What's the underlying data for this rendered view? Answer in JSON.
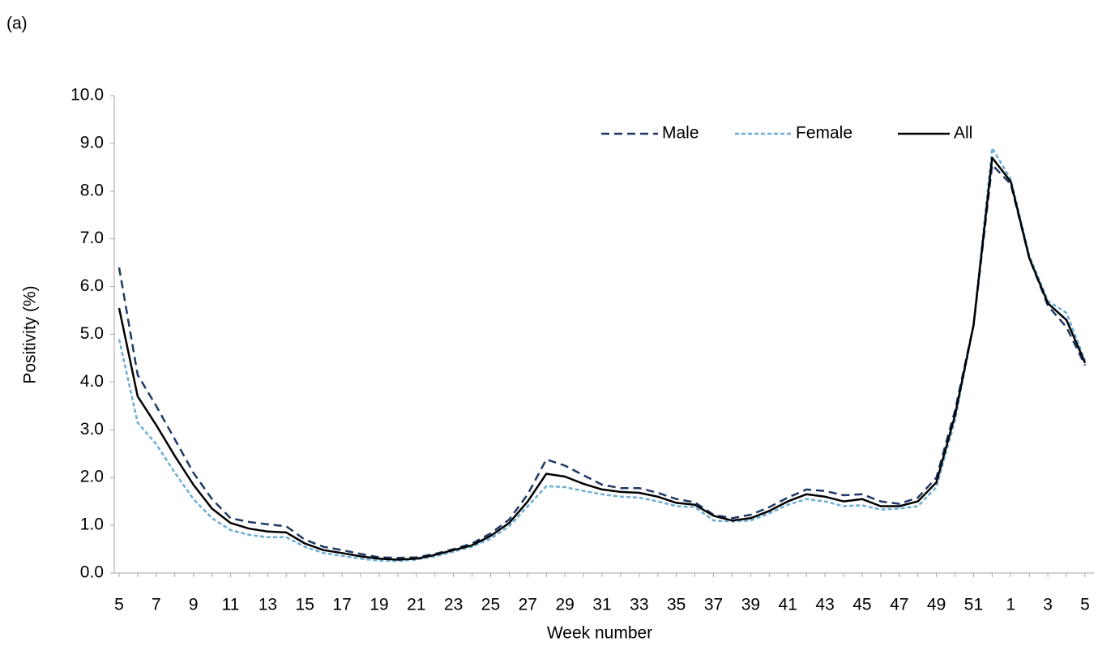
{
  "chart_data": {
    "type": "line",
    "panel_label": "(a)",
    "x_label": "Week number",
    "y_label": "Positivity (%)",
    "categories": [
      "5",
      null,
      "7",
      null,
      "9",
      null,
      "11",
      null,
      "13",
      null,
      "15",
      null,
      "17",
      null,
      "19",
      null,
      "21",
      null,
      "23",
      null,
      "25",
      null,
      "27",
      null,
      "29",
      null,
      "31",
      null,
      "33",
      null,
      "35",
      null,
      "37",
      null,
      "39",
      null,
      "41",
      null,
      "43",
      null,
      "45",
      null,
      "47",
      null,
      "49",
      null,
      "51",
      null,
      "1",
      null,
      "3",
      null,
      "5"
    ],
    "series": [
      {
        "name": "Male",
        "color": "#1f3864",
        "dash": "10,6",
        "values": [
          6.4,
          4.15,
          3.5,
          2.8,
          2.1,
          1.55,
          1.15,
          1.07,
          1.02,
          0.98,
          0.7,
          0.55,
          0.48,
          0.4,
          0.33,
          0.32,
          0.33,
          0.4,
          0.5,
          0.62,
          0.83,
          1.12,
          1.65,
          2.38,
          2.25,
          2.05,
          1.85,
          1.78,
          1.78,
          1.68,
          1.55,
          1.48,
          1.22,
          1.15,
          1.22,
          1.38,
          1.58,
          1.75,
          1.72,
          1.63,
          1.65,
          1.5,
          1.45,
          1.58,
          2.0,
          3.4,
          5.2,
          8.55,
          8.15,
          6.6,
          5.6,
          5.15,
          4.35
        ]
      },
      {
        "name": "Female",
        "color": "#6baed6",
        "dash": "5,3",
        "values": [
          4.9,
          3.15,
          2.7,
          2.1,
          1.55,
          1.15,
          0.9,
          0.8,
          0.75,
          0.75,
          0.55,
          0.42,
          0.36,
          0.3,
          0.26,
          0.25,
          0.28,
          0.35,
          0.45,
          0.55,
          0.72,
          0.98,
          1.4,
          1.82,
          1.8,
          1.72,
          1.65,
          1.6,
          1.58,
          1.5,
          1.4,
          1.38,
          1.1,
          1.08,
          1.1,
          1.25,
          1.43,
          1.55,
          1.5,
          1.4,
          1.42,
          1.33,
          1.35,
          1.4,
          1.8,
          3.2,
          5.2,
          8.9,
          8.25,
          6.65,
          5.7,
          5.45,
          4.45
        ]
      },
      {
        "name": "All",
        "color": "#000000",
        "dash": "none",
        "values": [
          5.55,
          3.7,
          3.1,
          2.45,
          1.85,
          1.35,
          1.05,
          0.93,
          0.87,
          0.85,
          0.62,
          0.48,
          0.42,
          0.35,
          0.3,
          0.28,
          0.3,
          0.38,
          0.48,
          0.58,
          0.78,
          1.05,
          1.5,
          2.08,
          2.02,
          1.87,
          1.75,
          1.7,
          1.68,
          1.6,
          1.47,
          1.43,
          1.2,
          1.1,
          1.15,
          1.3,
          1.5,
          1.65,
          1.6,
          1.5,
          1.55,
          1.4,
          1.4,
          1.5,
          1.9,
          3.3,
          5.2,
          8.7,
          8.2,
          6.6,
          5.65,
          5.3,
          4.4
        ]
      }
    ],
    "ylim": [
      0,
      10
    ],
    "yticks": [
      {
        "value": 0,
        "label": "0.0"
      },
      {
        "value": 1,
        "label": "1.0"
      },
      {
        "value": 2,
        "label": "2.0"
      },
      {
        "value": 3,
        "label": "3.0"
      },
      {
        "value": 4,
        "label": "4.0"
      },
      {
        "value": 5,
        "label": "5.0"
      },
      {
        "value": 6,
        "label": "6.0"
      },
      {
        "value": 7,
        "label": "7.0"
      },
      {
        "value": 8,
        "label": "8.0"
      },
      {
        "value": 9,
        "label": "9.0"
      },
      {
        "value": 10,
        "label": "10.0"
      }
    ],
    "grid": false,
    "legend": "top-right"
  }
}
